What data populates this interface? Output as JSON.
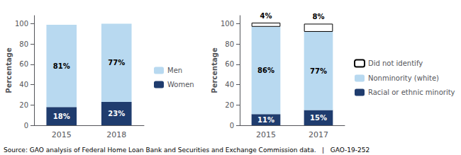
{
  "chart_data": [
    {
      "type": "bar",
      "stacked": true,
      "categories": [
        "2015",
        "2018"
      ],
      "series": [
        {
          "name": "Women",
          "color": "#1f3c6e",
          "values": [
            18,
            23
          ],
          "value_labels": [
            "18%",
            "23%"
          ]
        },
        {
          "name": "Men",
          "color": "#b8d9f0",
          "values": [
            81,
            77
          ],
          "value_labels": [
            "81%",
            "77%"
          ]
        }
      ],
      "ylabel": "Percentage",
      "ylim": [
        0,
        108
      ],
      "yticks": [
        0,
        20,
        40,
        60,
        80,
        100
      ],
      "grid": false,
      "legend": "right",
      "data_labels": true,
      "annotations": [
        "Source: GAO analysis of Federal Home Loan Bank and Securities and Exchange Commission data.   |   GAO-19-252"
      ]
    },
    {
      "type": "bar",
      "stacked": true,
      "categories": [
        "2015",
        "2017"
      ],
      "series": [
        {
          "name": "Racial or ethnic minority",
          "color": "#1f3c6e",
          "values": [
            11,
            15
          ],
          "value_labels": [
            "11%",
            "15%"
          ]
        },
        {
          "name": "Nonminority (white)",
          "color": "#b8d9f0",
          "values": [
            86,
            77
          ],
          "value_labels": [
            "86%",
            "77%"
          ]
        },
        {
          "name": "Did not identify",
          "color": "#ffffff",
          "values": [
            4,
            8
          ],
          "value_labels": [
            "4%",
            "8%"
          ]
        }
      ],
      "ylabel": "Percentage",
      "ylim": [
        0,
        108
      ],
      "yticks": [
        0,
        20,
        40,
        60,
        80,
        100
      ],
      "grid": false,
      "legend": "right",
      "data_labels": true
    }
  ]
}
